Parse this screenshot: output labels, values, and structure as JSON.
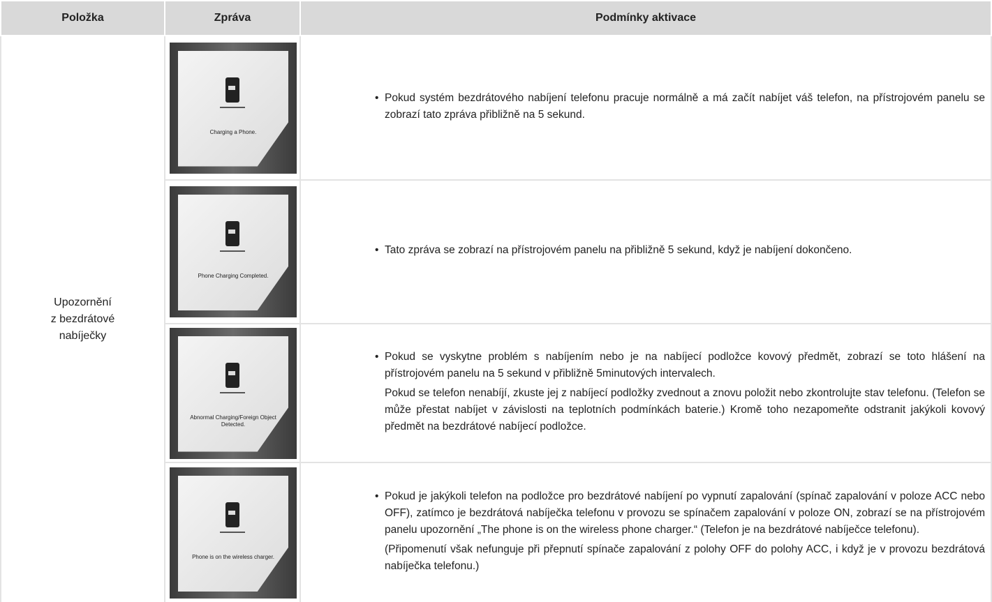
{
  "table": {
    "header": [
      "Položka",
      "Zpráva",
      "Podmínky aktivace"
    ],
    "item": [
      "Upozornění",
      "z bezdrátové",
      "nabíječky"
    ],
    "rows": [
      {
        "message": "Charging a Phone.",
        "conditions": [
          "Pokud systém bezdrátového nabíjení telefonu pracuje normálně a má začít nabíjet váš telefon, na přístrojovém panelu se zobrazí tato zpráva přibližně na 5 sekund."
        ]
      },
      {
        "message": "Phone Charging Completed.",
        "conditions": [
          "Tato zpráva se zobrazí na přístrojovém panelu na přibližně 5 sekund, když je nabíjení dokončeno."
        ]
      },
      {
        "message": "Abnormal Charging/Foreign Object Detected.",
        "conditions": [
          "Pokud se vyskytne problém s nabíjením nebo je na nabíjecí podložce kovový předmět, zobrazí se toto hlášení na přístrojovém panelu na 5 sekund v přibližně 5minutových intervalech.",
          "Pokud se telefon nenabíjí, zkuste jej z nabíjecí podložky zvednout a znovu položit nebo zkontrolujte stav telefonu. (Telefon se může přestat nabíjet v závislosti na teplotních podmínkách baterie.) Kromě toho nezapomeňte odstranit jakýkoli kovový předmět na bezdrátové nabíjecí podložce."
        ]
      },
      {
        "message": "Phone is on the wireless charger.",
        "conditions": [
          "Pokud je jakýkoli telefon na podložce pro bezdrátové nabíjení po vypnutí zapalování (spínač zapalování v poloze ACC nebo OFF), zatímco je bezdrátová nabíječka telefonu v provozu se spínačem zapalování v poloze ON, zobrazí se na přístrojovém panelu upozornění „The phone is on the wireless phone charger.“ (Telefon je na bezdrátové nabíječce telefonu).",
          "(Připomenutí však nefunguje při přepnutí spínače zapalování z polohy OFF do polohy ACC, i když je v provozu bezdrátová nabíječka telefonu.)"
        ]
      }
    ]
  }
}
